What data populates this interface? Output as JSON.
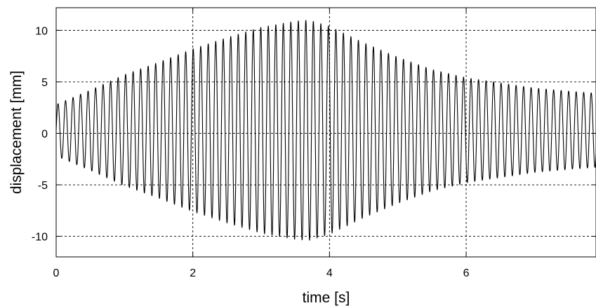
{
  "chart_data": {
    "type": "line",
    "title": "",
    "xlabel": "time [s]",
    "ylabel": "displacement [mm]",
    "xlim": [
      0,
      7.9
    ],
    "ylim": [
      -12,
      12.2
    ],
    "x_ticks": [
      0,
      2,
      4,
      6
    ],
    "x_tick_labels": [
      "0",
      "2",
      "4",
      "6"
    ],
    "y_ticks": [
      -10,
      -5,
      0,
      5,
      10
    ],
    "y_tick_labels": [
      "-10",
      "-5",
      "0",
      "5",
      "10"
    ],
    "grid": true,
    "legend": "none",
    "line_color": "#000000",
    "series": [
      {
        "oscillation_frequency_hz": 9.1,
        "mean_offset": 0.3,
        "envelope_amplitude": {
          "t": [
            0,
            0.5,
            1.0,
            1.5,
            2.0,
            2.5,
            3.0,
            3.5,
            3.7,
            4.0,
            4.5,
            5.0,
            5.5,
            6.0,
            6.5,
            7.0,
            7.5,
            7.9
          ],
          "amplitude": [
            2.5,
            3.9,
            5.4,
            6.6,
            7.9,
            9.0,
            10.0,
            10.6,
            10.7,
            10.1,
            8.5,
            7.1,
            5.9,
            5.1,
            4.6,
            4.1,
            3.8,
            3.6
          ]
        }
      }
    ]
  }
}
